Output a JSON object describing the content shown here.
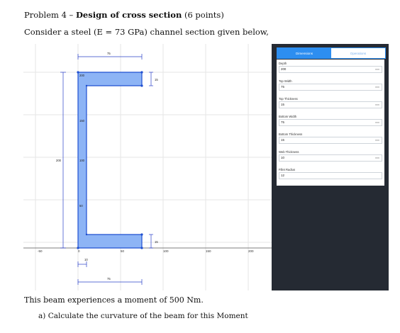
{
  "document": {
    "problem_prefix": "Problem 4 – ",
    "problem_title": "Design of cross section",
    "problem_points": " (6 points)",
    "intro": "Consider a steel (E = 73 GPa) channel section given below,",
    "moment_text": "This beam experiences a moment of 500 Nm.",
    "question_a": "a)  Calculate the curvature of the beam for this Moment"
  },
  "figure": {
    "colors": {
      "section_fill": "#8db4f5",
      "section_stroke": "#1f4fd1",
      "dim": "#2a40c8",
      "grid": "#e6e6e6",
      "panel": "#252a33",
      "accent": "#2d8ef0"
    },
    "x_tick_labels": [
      "-50",
      "0",
      "50",
      "100",
      "150",
      "200"
    ],
    "dim_labels": {
      "top_width": "75",
      "bottom_width": "75",
      "top_thickness": "15",
      "bottom_thickness": "15",
      "web_thickness": "10",
      "depth": "200",
      "inner_depth": "100",
      "web_upper": "150",
      "web_lower": "50",
      "top_corner": "200"
    }
  },
  "panel": {
    "tabs": [
      "Dimensions",
      "Operations"
    ],
    "active_tab": "Dimensions",
    "fields": [
      {
        "label": "Depth",
        "value": "200",
        "unit": "mm"
      },
      {
        "label": "Top Width",
        "value": "75",
        "unit": "mm"
      },
      {
        "label": "Top Thickness",
        "value": "15",
        "unit": "mm"
      },
      {
        "label": "Bottom Width",
        "value": "75",
        "unit": "mm"
      },
      {
        "label": "Bottom Thickness",
        "value": "15",
        "unit": "mm"
      },
      {
        "label": "Web Thickness",
        "value": "10",
        "unit": "mm"
      },
      {
        "label": "Fillet Radius",
        "value": "12",
        "unit": ""
      }
    ]
  }
}
